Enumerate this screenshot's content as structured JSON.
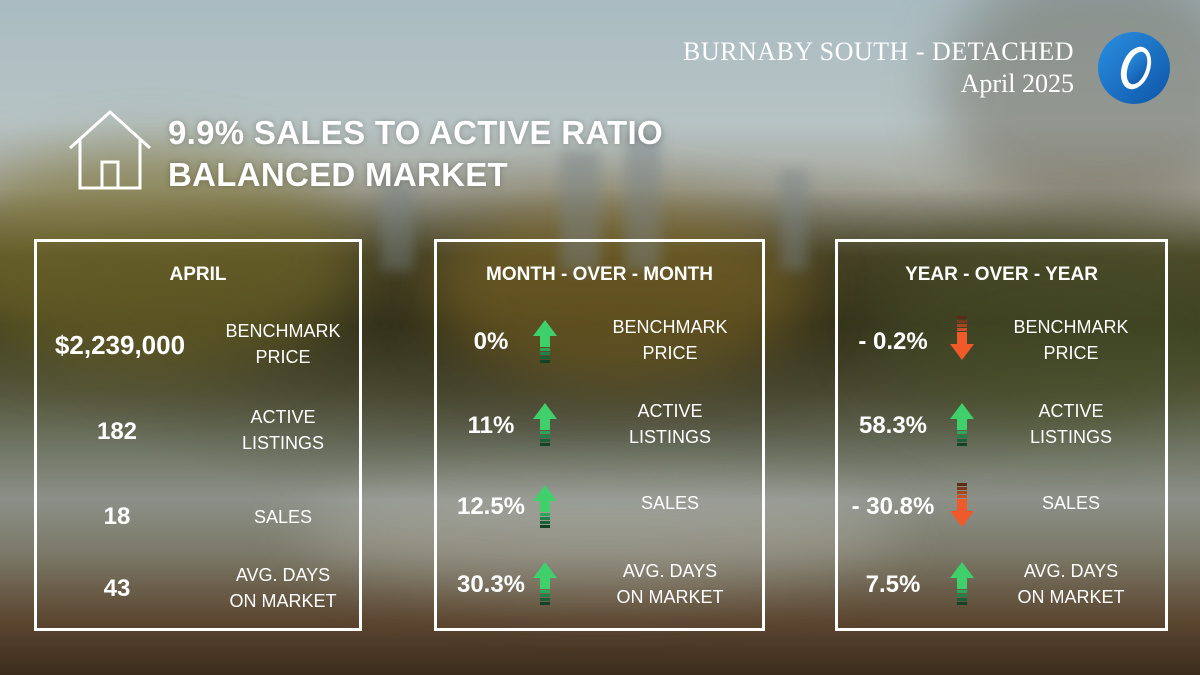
{
  "header": {
    "area": "BURNABY SOUTH - DETACHED",
    "period": "April 2025"
  },
  "headline": {
    "line1": "9.9% SALES TO ACTIVE RATIO",
    "line2": "BALANCED MARKET"
  },
  "colors": {
    "up": "#3fcf6b",
    "down": "#f05a2a",
    "logo_blue": "#1e73c8"
  },
  "panels": {
    "april": {
      "title": "APRIL",
      "rows": [
        {
          "value": "$2,239,000",
          "label1": "BENCHMARK",
          "label2": "PRICE"
        },
        {
          "value": "182",
          "label1": "ACTIVE",
          "label2": "LISTINGS"
        },
        {
          "value": "18",
          "label1": "SALES",
          "label2": ""
        },
        {
          "value": "43",
          "label1": "AVG. DAYS",
          "label2": "ON MARKET"
        }
      ]
    },
    "mom": {
      "title": "MONTH - OVER - MONTH",
      "rows": [
        {
          "value": "0%",
          "label1": "BENCHMARK",
          "label2": "PRICE",
          "trend": "up"
        },
        {
          "value": "11%",
          "label1": "ACTIVE",
          "label2": "LISTINGS",
          "trend": "up"
        },
        {
          "value": "12.5%",
          "label1": "SALES",
          "label2": "",
          "trend": "up"
        },
        {
          "value": "30.3%",
          "label1": "AVG. DAYS",
          "label2": "ON MARKET",
          "trend": "up"
        }
      ]
    },
    "yoy": {
      "title": "YEAR - OVER - YEAR",
      "rows": [
        {
          "value": "- 0.2%",
          "label1": "BENCHMARK",
          "label2": "PRICE",
          "trend": "down"
        },
        {
          "value": "58.3%",
          "label1": "ACTIVE",
          "label2": "LISTINGS",
          "trend": "up"
        },
        {
          "value": "- 30.8%",
          "label1": "SALES",
          "label2": "",
          "trend": "down"
        },
        {
          "value": "7.5%",
          "label1": "AVG. DAYS",
          "label2": "ON MARKET",
          "trend": "up"
        }
      ]
    }
  }
}
